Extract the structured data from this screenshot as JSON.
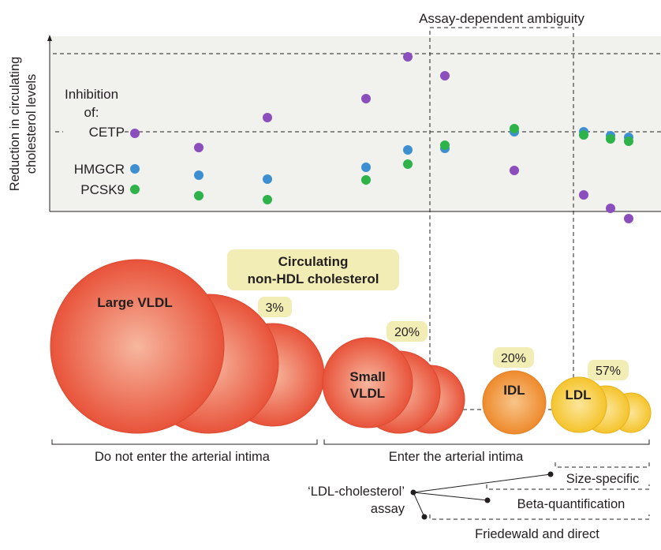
{
  "y_axis_label_line1": "Reduction in circulating",
  "y_axis_label_line2": "cholesterol levels",
  "ambiguity_label": "Assay-dependent ambiguity",
  "inhibition_label_line1": "Inhibition",
  "inhibition_label_line2": "of:",
  "inhibitors": [
    {
      "name": "CETP",
      "color": "#8b4fbd"
    },
    {
      "name": "HMGCR",
      "color": "#3d8fd1"
    },
    {
      "name": "PCSK9",
      "color": "#2db34a"
    }
  ],
  "circulating_label_line1": "Circulating",
  "circulating_label_line2": "non-HDL cholesterol",
  "particles": [
    {
      "name_line1": "Large VLDL",
      "name_line2": "",
      "percent": "3%"
    },
    {
      "name_line1": "Small",
      "name_line2": "VLDL",
      "percent": "20%"
    },
    {
      "name_line1": "IDL",
      "name_line2": "",
      "percent": "20%"
    },
    {
      "name_line1": "LDL",
      "name_line2": "",
      "percent": "57%"
    }
  ],
  "intima_no_label": "Do not enter the arterial intima",
  "intima_yes_label": "Enter the arterial intima",
  "assay_label_line1": "‘LDL-cholesterol’",
  "assay_label_line2": "assay",
  "assays": [
    "Size-specific",
    "Beta-quantification",
    "Friedewald and direct"
  ],
  "colors": {
    "panel_bg": "#f1f1ee",
    "badge_bg": "#f2ecb5",
    "vldl_fill": "#e8533a",
    "idl_fill": "#f0902f",
    "ldl_fill": "#f6c731"
  }
}
